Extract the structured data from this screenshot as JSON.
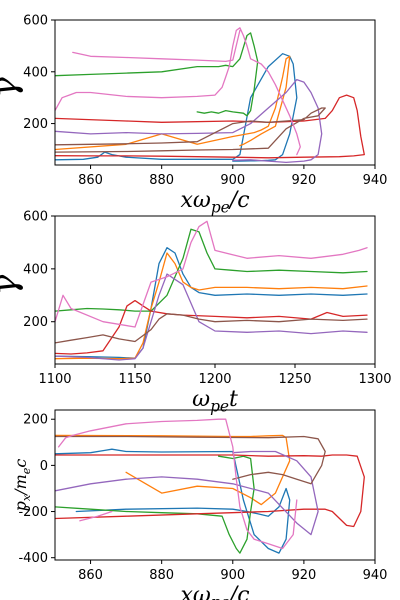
{
  "figure": {
    "panels": [
      {
        "name": "panel-gamma-vs-x",
        "xlabel": "xωpe/c",
        "ylabel": "γ"
      },
      {
        "name": "panel-gamma-vs-t",
        "xlabel": "ωpet",
        "ylabel": "γ"
      },
      {
        "name": "panel-px-vs-x",
        "xlabel": "xωpe/c",
        "ylabel": "px/mec"
      }
    ]
  },
  "chart_data": [
    {
      "type": "line",
      "xlabel": "xωpe/c",
      "ylabel": "γ",
      "xlim": [
        850,
        940
      ],
      "ylim": [
        40,
        600
      ],
      "xticks": [
        860,
        880,
        900,
        920,
        940
      ],
      "yticks": [
        200,
        400,
        600
      ],
      "grid": false,
      "series": [
        {
          "color": "#1f77b4",
          "x": [
            850,
            858,
            862,
            864,
            866,
            870,
            880,
            900,
            902,
            905,
            910,
            914,
            916,
            917,
            918,
            916,
            914,
            912,
            910,
            908,
            906,
            905,
            902,
            900
          ],
          "y": [
            60,
            62,
            70,
            90,
            80,
            70,
            62,
            62,
            80,
            300,
            420,
            470,
            460,
            430,
            300,
            160,
            80,
            60,
            58,
            57,
            56,
            56,
            55,
            55
          ]
        },
        {
          "color": "#ff7f0e",
          "x": [
            850,
            870,
            880,
            890,
            900,
            906,
            908,
            910,
            912,
            914,
            915,
            916,
            915,
            912,
            908,
            905,
            903,
            902
          ],
          "y": [
            100,
            120,
            160,
            120,
            150,
            165,
            175,
            190,
            260,
            380,
            450,
            460,
            340,
            190,
            160,
            135,
            120,
            115
          ]
        },
        {
          "color": "#2ca02c",
          "x": [
            850,
            860,
            870,
            880,
            890,
            896,
            898,
            900,
            902,
            904,
            905,
            906,
            907,
            906,
            905,
            904,
            903,
            900,
            898,
            896,
            894,
            892,
            890
          ],
          "y": [
            385,
            390,
            395,
            400,
            420,
            420,
            425,
            420,
            450,
            540,
            550,
            500,
            440,
            330,
            250,
            230,
            240,
            245,
            250,
            240,
            245,
            240,
            245
          ]
        },
        {
          "color": "#d62728",
          "x": [
            850,
            870,
            880,
            900,
            910,
            920,
            926,
            928,
            930,
            932,
            934,
            935,
            936,
            937,
            934,
            930,
            920,
            910,
            900,
            890,
            880,
            870,
            860,
            850
          ],
          "y": [
            220,
            210,
            205,
            210,
            205,
            210,
            220,
            250,
            300,
            310,
            300,
            250,
            150,
            80,
            75,
            72,
            70,
            68,
            70,
            72,
            74,
            75,
            75,
            76
          ]
        },
        {
          "color": "#9467bd",
          "x": [
            850,
            860,
            870,
            880,
            890,
            900,
            905,
            910,
            915,
            918,
            920,
            922,
            924,
            925,
            924,
            922,
            920,
            915,
            910,
            905,
            900
          ],
          "y": [
            170,
            160,
            165,
            160,
            162,
            165,
            200,
            260,
            320,
            370,
            360,
            320,
            260,
            160,
            80,
            60,
            55,
            50,
            55,
            60,
            58
          ]
        },
        {
          "color": "#8c564b",
          "x": [
            850,
            870,
            880,
            890,
            900,
            910,
            915,
            920,
            924,
            926,
            925,
            922,
            920,
            915,
            910,
            905,
            900,
            890,
            880,
            870,
            860,
            850
          ],
          "y": [
            90,
            92,
            95,
            98,
            100,
            105,
            180,
            220,
            230,
            260,
            260,
            240,
            215,
            210,
            205,
            210,
            200,
            130,
            125,
            122,
            120,
            118
          ]
        },
        {
          "color": "#e377c2",
          "x": [
            850,
            852,
            854,
            856,
            860,
            870,
            880,
            890,
            895,
            897,
            898,
            899,
            900,
            901,
            902,
            903,
            904,
            905,
            908,
            910,
            912,
            914,
            916,
            918,
            919,
            918
          ],
          "y": [
            250,
            300,
            310,
            320,
            320,
            305,
            300,
            305,
            310,
            340,
            380,
            420,
            500,
            560,
            570,
            540,
            500,
            450,
            430,
            400,
            350,
            290,
            230,
            160,
            110,
            80
          ]
        },
        {
          "color": "#e377c2",
          "x": [
            855,
            860,
            870,
            880,
            890,
            898,
            900,
            902
          ],
          "y": [
            475,
            460,
            455,
            450,
            445,
            440,
            445,
            560
          ]
        }
      ]
    },
    {
      "type": "line",
      "xlabel": "ωpet",
      "ylabel": "γ",
      "xlim": [
        1100,
        1300
      ],
      "ylim": [
        40,
        600
      ],
      "xticks": [
        1100,
        1150,
        1200,
        1250,
        1300
      ],
      "yticks": [
        200,
        400,
        600
      ],
      "grid": false,
      "series": [
        {
          "color": "#1f77b4",
          "x": [
            1100,
            1120,
            1140,
            1150,
            1155,
            1160,
            1165,
            1170,
            1175,
            1180,
            1185,
            1190,
            1200,
            1220,
            1240,
            1260,
            1280,
            1295
          ],
          "y": [
            70,
            68,
            65,
            62,
            100,
            250,
            420,
            480,
            460,
            380,
            330,
            310,
            300,
            305,
            300,
            305,
            300,
            305
          ]
        },
        {
          "color": "#ff7f0e",
          "x": [
            1100,
            1120,
            1140,
            1150,
            1155,
            1160,
            1165,
            1170,
            1175,
            1180,
            1185,
            1190,
            1200,
            1220,
            1240,
            1260,
            1280,
            1295
          ],
          "y": [
            60,
            62,
            60,
            62,
            120,
            250,
            350,
            460,
            420,
            350,
            330,
            320,
            330,
            330,
            325,
            330,
            325,
            335
          ]
        },
        {
          "color": "#2ca02c",
          "x": [
            1100,
            1110,
            1120,
            1130,
            1140,
            1150,
            1160,
            1170,
            1180,
            1185,
            1190,
            1195,
            1200,
            1210,
            1220,
            1240,
            1260,
            1280,
            1295
          ],
          "y": [
            240,
            245,
            250,
            248,
            245,
            240,
            240,
            300,
            440,
            550,
            540,
            460,
            400,
            395,
            390,
            395,
            390,
            385,
            390
          ]
        },
        {
          "color": "#d62728",
          "x": [
            1100,
            1110,
            1120,
            1130,
            1140,
            1145,
            1150,
            1155,
            1160,
            1170,
            1180,
            1200,
            1220,
            1240,
            1260,
            1270,
            1280,
            1295
          ],
          "y": [
            80,
            78,
            82,
            90,
            180,
            260,
            280,
            260,
            240,
            230,
            225,
            220,
            215,
            220,
            210,
            235,
            220,
            225
          ]
        },
        {
          "color": "#9467bd",
          "x": [
            1100,
            1120,
            1140,
            1150,
            1155,
            1160,
            1165,
            1170,
            1180,
            1190,
            1200,
            1220,
            1240,
            1260,
            1280,
            1295
          ],
          "y": [
            70,
            65,
            55,
            60,
            100,
            200,
            300,
            380,
            340,
            200,
            165,
            160,
            165,
            155,
            165,
            160
          ]
        },
        {
          "color": "#8c564b",
          "x": [
            1100,
            1110,
            1120,
            1130,
            1140,
            1150,
            1160,
            1165,
            1170,
            1180,
            1190,
            1200,
            1220,
            1240,
            1260,
            1280,
            1295
          ],
          "y": [
            120,
            130,
            140,
            150,
            135,
            125,
            170,
            210,
            230,
            225,
            210,
            200,
            205,
            200,
            210,
            205,
            210
          ]
        },
        {
          "color": "#e377c2",
          "x": [
            1100,
            1105,
            1110,
            1130,
            1150,
            1160,
            1170,
            1180,
            1185,
            1190,
            1195,
            1200,
            1220,
            1240,
            1260,
            1280,
            1290,
            1295
          ],
          "y": [
            200,
            300,
            250,
            200,
            180,
            350,
            370,
            400,
            500,
            560,
            580,
            470,
            440,
            450,
            440,
            455,
            470,
            480
          ]
        }
      ]
    },
    {
      "type": "line",
      "xlabel": "xωpe/c",
      "ylabel": "px/mec",
      "xlim": [
        850,
        940
      ],
      "ylim": [
        -410,
        240
      ],
      "xticks": [
        860,
        880,
        900,
        920,
        940
      ],
      "yticks": [
        -400,
        -200,
        0,
        200
      ],
      "grid": false,
      "series": [
        {
          "color": "#1f77b4",
          "x": [
            850,
            860,
            864,
            866,
            870,
            880,
            900,
            903,
            906,
            910,
            913,
            915,
            916,
            915,
            913,
            910,
            907,
            904,
            900,
            890,
            870,
            856
          ],
          "y": [
            50,
            55,
            65,
            70,
            60,
            58,
            60,
            -150,
            -300,
            -360,
            -380,
            -320,
            -150,
            -100,
            -180,
            -220,
            -210,
            -200,
            -190,
            -185,
            -190,
            -200
          ]
        },
        {
          "color": "#ff7f0e",
          "x": [
            850,
            880,
            900,
            905,
            910,
            914,
            915,
            916,
            912,
            908,
            905,
            900,
            890,
            880,
            870
          ],
          "y": [
            130,
            128,
            125,
            125,
            128,
            130,
            120,
            20,
            -120,
            -170,
            -140,
            -100,
            -90,
            -120,
            -30
          ]
        },
        {
          "color": "#2ca02c",
          "x": [
            850,
            860,
            870,
            880,
            890,
            897,
            899,
            901,
            902,
            904,
            905,
            906,
            905,
            903,
            900,
            898,
            896
          ],
          "y": [
            -180,
            -190,
            -200,
            -205,
            -210,
            -220,
            -300,
            -360,
            -380,
            -320,
            -200,
            -100,
            30,
            40,
            30,
            35,
            40
          ]
        },
        {
          "color": "#d62728",
          "x": [
            850,
            870,
            890,
            910,
            920,
            926,
            928,
            932,
            934,
            936,
            937,
            935,
            932,
            928,
            925,
            920,
            910,
            900,
            890,
            880,
            870,
            860,
            850
          ],
          "y": [
            -230,
            -220,
            -210,
            -200,
            -190,
            -190,
            -200,
            -260,
            -265,
            -200,
            -50,
            40,
            45,
            45,
            40,
            42,
            40,
            45,
            45,
            45,
            45,
            45,
            45
          ]
        },
        {
          "color": "#9467bd",
          "x": [
            850,
            860,
            870,
            880,
            890,
            900,
            910,
            918,
            922,
            924,
            922,
            918,
            912,
            905,
            900
          ],
          "y": [
            -110,
            -80,
            -60,
            -50,
            -60,
            -80,
            -120,
            -250,
            -300,
            -200,
            -50,
            20,
            60,
            60,
            55
          ]
        },
        {
          "color": "#8c564b",
          "x": [
            850,
            870,
            890,
            910,
            920,
            924,
            926,
            925,
            922,
            918,
            914,
            910,
            905,
            900
          ],
          "y": [
            125,
            125,
            122,
            120,
            125,
            115,
            60,
            0,
            -80,
            -60,
            -40,
            -30,
            -40,
            -60
          ]
        },
        {
          "color": "#e377c2",
          "x": [
            851,
            853,
            855,
            860,
            870,
            880,
            890,
            896,
            898,
            900,
            901,
            902,
            904,
            906,
            910,
            914,
            917,
            918
          ],
          "y": [
            80,
            120,
            130,
            150,
            180,
            190,
            195,
            200,
            200,
            80,
            -60,
            -180,
            -280,
            -320,
            -340,
            -360,
            -300,
            -150
          ]
        },
        {
          "color": "#e377c2",
          "x": [
            857,
            862,
            866
          ],
          "y": [
            -240,
            -220,
            -200
          ]
        }
      ]
    }
  ]
}
